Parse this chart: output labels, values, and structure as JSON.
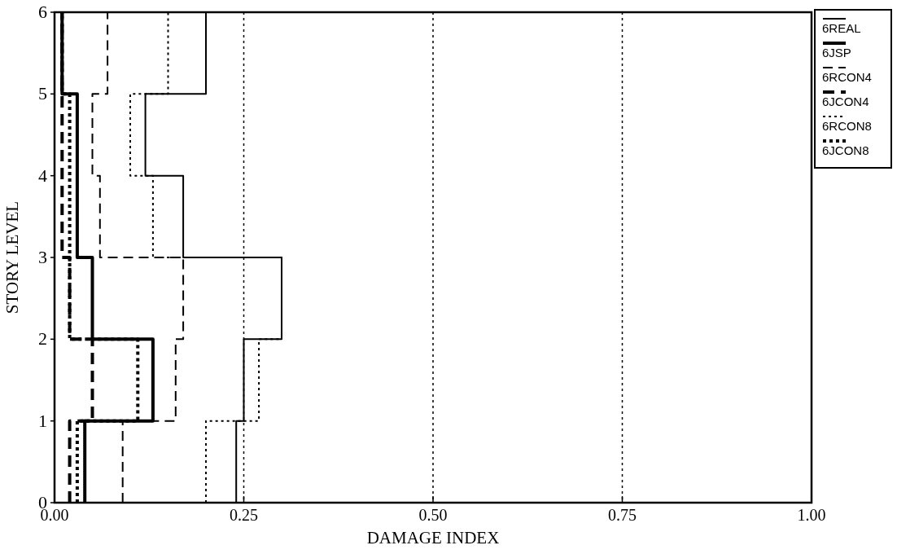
{
  "chart_data": {
    "type": "line",
    "xlabel": "DAMAGE INDEX",
    "ylabel": "STORY LEVEL",
    "xlim": [
      0,
      1
    ],
    "ylim": [
      0,
      6
    ],
    "xticks": [
      {
        "value": 0,
        "label": "0.00"
      },
      {
        "value": 0.25,
        "label": "0.25"
      },
      {
        "value": 0.5,
        "label": "0.50"
      },
      {
        "value": 0.75,
        "label": "0.75"
      },
      {
        "value": 1,
        "label": "1.00"
      }
    ],
    "yticks": [
      0,
      1,
      2,
      3,
      4,
      5,
      6
    ],
    "grid": "x",
    "legend": "top right",
    "marker": "none",
    "series": [
      {
        "name": "6REAL",
        "color": "#000000",
        "line_style": "solid",
        "x": [
          0.24,
          0.24,
          0.25,
          0.25,
          0.3,
          0.3,
          0.17,
          0.17,
          0.12,
          0.12,
          0.2,
          0.2
        ],
        "values": [
          0,
          1,
          1,
          2,
          2,
          3,
          3,
          4,
          4,
          5,
          5,
          6
        ]
      },
      {
        "name": "6JSP",
        "color": "#000000",
        "line_style": "solid",
        "x": [
          0.04,
          0.04,
          0.13,
          0.13,
          0.05,
          0.05,
          0.03,
          0.03,
          0.03,
          0.03,
          0.01,
          0.01
        ],
        "values": [
          0,
          1,
          1,
          2,
          2,
          3,
          3,
          4,
          4,
          5,
          5,
          6
        ]
      },
      {
        "name": "6RCON4",
        "color": "#000000",
        "line_style": "dashed",
        "x": [
          0.09,
          0.09,
          0.16,
          0.16,
          0.17,
          0.17,
          0.06,
          0.06,
          0.05,
          0.05,
          0.07,
          0.07
        ],
        "values": [
          0,
          1,
          1,
          2,
          2,
          3,
          3,
          4,
          4,
          5,
          5,
          6
        ]
      },
      {
        "name": "6JCON4",
        "color": "#000000",
        "line_style": "dashed",
        "x": [
          0.02,
          0.02,
          0.05,
          0.05,
          0.02,
          0.02,
          0.01,
          0.01,
          0.01,
          0.01,
          0.01,
          0.01
        ],
        "values": [
          0,
          1,
          1,
          2,
          2,
          3,
          3,
          4,
          4,
          5,
          5,
          6
        ]
      },
      {
        "name": "6RCON8",
        "color": "#000000",
        "line_style": "dotted",
        "x": [
          0.2,
          0.2,
          0.27,
          0.27,
          0.3,
          0.3,
          0.13,
          0.13,
          0.1,
          0.1,
          0.15,
          0.15
        ],
        "values": [
          0,
          1,
          1,
          2,
          2,
          3,
          3,
          4,
          4,
          5,
          5,
          6
        ]
      },
      {
        "name": "6JCON8",
        "color": "#000000",
        "line_style": "dotted",
        "x": [
          0.03,
          0.03,
          0.11,
          0.11,
          0.02,
          0.02,
          0.02,
          0.02,
          0.02,
          0.02,
          0.01,
          0.01
        ],
        "values": [
          0,
          1,
          1,
          2,
          2,
          3,
          3,
          4,
          4,
          5,
          5,
          6
        ]
      }
    ]
  }
}
